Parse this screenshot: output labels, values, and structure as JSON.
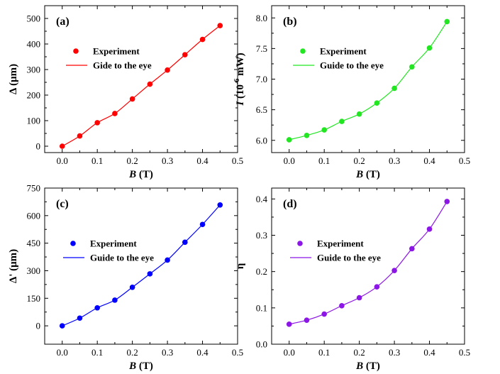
{
  "chart_data": [
    {
      "type": "scatter",
      "panel_label": "(a)",
      "color": "#ff0000",
      "xlabel_var": "B",
      "xlabel_unit": " (T)",
      "ylabel_pre": "",
      "ylabel_var": "Δ",
      "ylabel_sup": "",
      "ylabel_unit": " (μm)",
      "ylabel_italic": false,
      "xlim": [
        -0.05,
        0.5
      ],
      "ylim": [
        -25,
        550
      ],
      "xticks": [
        0.0,
        0.1,
        0.2,
        0.3,
        0.4,
        0.5
      ],
      "xticklabels": [
        "0.0",
        "0.1",
        "0.2",
        "0.3",
        "0.4",
        "0.5"
      ],
      "yticks": [
        0,
        100,
        200,
        300,
        400,
        500
      ],
      "yticklabels": [
        "0",
        "100",
        "200",
        "300",
        "400",
        "500"
      ],
      "x": [
        0.0,
        0.05,
        0.1,
        0.15,
        0.2,
        0.25,
        0.3,
        0.35,
        0.4,
        0.45
      ],
      "y": [
        0,
        40,
        92,
        128,
        185,
        243,
        298,
        358,
        418,
        472
      ],
      "legend": {
        "marker_label": "Experiment",
        "line_label": "Gide to the eye",
        "placement": "top-left"
      },
      "grid": false
    },
    {
      "type": "scatter",
      "panel_label": "(b)",
      "color": "#22e622",
      "xlabel_var": "B",
      "xlabel_unit": " (T)",
      "ylabel_pre": "",
      "ylabel_var": "I",
      "ylabel_sup": "-6",
      "ylabel_unit": " mW)",
      "ylabel_mid": " (10",
      "ylabel_italic": true,
      "xlim": [
        -0.05,
        0.5
      ],
      "ylim": [
        5.8,
        8.2
      ],
      "xticks": [
        0.0,
        0.1,
        0.2,
        0.3,
        0.4,
        0.5
      ],
      "xticklabels": [
        "0.0",
        "0.1",
        "0.2",
        "0.3",
        "0.4",
        "0.5"
      ],
      "yticks": [
        6.0,
        6.5,
        7.0,
        7.5,
        8.0
      ],
      "yticklabels": [
        "6.0",
        "6.5",
        "7.0",
        "7.5",
        "8.0"
      ],
      "x": [
        0.0,
        0.05,
        0.1,
        0.15,
        0.2,
        0.25,
        0.3,
        0.35,
        0.4,
        0.45
      ],
      "y": [
        6.01,
        6.08,
        6.17,
        6.31,
        6.43,
        6.61,
        6.85,
        7.2,
        7.51,
        7.94
      ],
      "legend": {
        "marker_label": "Experiment",
        "line_label": "Guide to the eye",
        "placement": "top-left"
      },
      "grid": false
    },
    {
      "type": "scatter",
      "panel_label": "(c)",
      "color": "#0000ff",
      "xlabel_var": "B",
      "xlabel_unit": " (T)",
      "ylabel_pre": "",
      "ylabel_var": "Δ'",
      "ylabel_sup": "",
      "ylabel_unit": " (μm)",
      "ylabel_italic": false,
      "xlim": [
        -0.05,
        0.5
      ],
      "ylim": [
        -100,
        750
      ],
      "xticks": [
        0.0,
        0.1,
        0.2,
        0.3,
        0.4,
        0.5
      ],
      "xticklabels": [
        "0.0",
        "0.1",
        "0.2",
        "0.3",
        "0.4",
        "0.5"
      ],
      "yticks": [
        0,
        150,
        300,
        450,
        600,
        750
      ],
      "yticklabels": [
        "0",
        "150",
        "300",
        "450",
        "600",
        "750"
      ],
      "x": [
        0.0,
        0.05,
        0.1,
        0.15,
        0.2,
        0.25,
        0.3,
        0.35,
        0.4,
        0.45
      ],
      "y": [
        0,
        42,
        98,
        140,
        210,
        283,
        358,
        455,
        552,
        658
      ],
      "legend": {
        "marker_label": "Experiment",
        "line_label": "Guide to the eye",
        "placement": "middle-left"
      },
      "grid": false
    },
    {
      "type": "scatter",
      "panel_label": "(d)",
      "color": "#8b16e6",
      "xlabel_var": "B",
      "xlabel_unit": " (T)",
      "ylabel_pre": "",
      "ylabel_var": "η",
      "ylabel_sup": "",
      "ylabel_unit": "",
      "ylabel_italic": false,
      "xlim": [
        -0.05,
        0.5
      ],
      "ylim": [
        0.0,
        0.43
      ],
      "xticks": [
        0.0,
        0.1,
        0.2,
        0.3,
        0.4,
        0.5
      ],
      "xticklabels": [
        "0.0",
        "0.1",
        "0.2",
        "0.3",
        "0.4",
        "0.5"
      ],
      "yticks": [
        0.0,
        0.1,
        0.2,
        0.3,
        0.4
      ],
      "yticklabels": [
        "0.0",
        "0.1",
        "0.2",
        "0.3",
        "0.4"
      ],
      "x": [
        0.0,
        0.05,
        0.1,
        0.15,
        0.2,
        0.25,
        0.3,
        0.35,
        0.4,
        0.45
      ],
      "y": [
        0.055,
        0.066,
        0.083,
        0.106,
        0.128,
        0.158,
        0.203,
        0.263,
        0.317,
        0.393
      ],
      "legend": {
        "marker_label": "Experiment",
        "line_label": "Guide to the eye",
        "placement": "middle-left"
      },
      "grid": false
    }
  ]
}
